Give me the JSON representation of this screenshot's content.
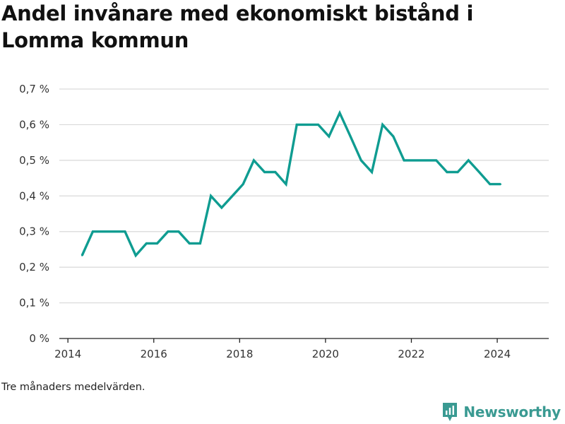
{
  "title": "Andel invånare med ekonomiskt bistånd i Lomma kommun",
  "note": "Tre månaders medelvärden.",
  "brand": {
    "name": "Newsworthy",
    "icon": "newsworthy-logo-icon",
    "color": "#3a9a92"
  },
  "colors": {
    "line": "#0f9c91",
    "grid": "#d9d9d9",
    "axis": "#222222"
  },
  "chart_data": {
    "type": "line",
    "title": "Andel invånare med ekonomiskt bistånd i Lomma kommun",
    "xlabel": "",
    "ylabel": "",
    "xlim": [
      2013.8,
      2025.2
    ],
    "ylim": [
      0,
      0.7
    ],
    "x_ticks": [
      2014,
      2016,
      2018,
      2020,
      2022,
      2024
    ],
    "x_tick_labels": [
      "2014",
      "2016",
      "2018",
      "2020",
      "2022",
      "2024"
    ],
    "y_ticks": [
      0,
      0.1,
      0.2,
      0.3,
      0.4,
      0.5,
      0.6,
      0.7
    ],
    "y_tick_labels": [
      "0 %",
      "0,1 %",
      "0,2 %",
      "0,3 %",
      "0,4 %",
      "0,5 %",
      "0,6 %",
      "0,7 %"
    ],
    "grid": true,
    "series": [
      {
        "x": [
          2014.33,
          2014.58,
          2014.83,
          2015.08,
          2015.33,
          2015.58,
          2015.83,
          2016.08,
          2016.33,
          2016.58,
          2016.83,
          2017.08,
          2017.33,
          2017.58,
          2017.83,
          2018.08,
          2018.33,
          2018.58,
          2018.83,
          2019.08,
          2019.33,
          2019.58,
          2019.83,
          2020.08,
          2020.33,
          2020.58,
          2020.83,
          2021.08,
          2021.33,
          2021.58,
          2021.83,
          2022.08,
          2022.33,
          2022.58,
          2022.83,
          2023.08,
          2023.33,
          2023.58,
          2023.83,
          2024.08
        ],
        "values": [
          0.233,
          0.3,
          0.3,
          0.3,
          0.3,
          0.233,
          0.267,
          0.267,
          0.3,
          0.3,
          0.267,
          0.267,
          0.4,
          0.367,
          0.4,
          0.433,
          0.5,
          0.467,
          0.467,
          0.433,
          0.6,
          0.6,
          0.6,
          0.567,
          0.633,
          0.567,
          0.5,
          0.467,
          0.6,
          0.567,
          0.5,
          0.5,
          0.5,
          0.5,
          0.467,
          0.467,
          0.5,
          0.467,
          0.433,
          0.433
        ]
      }
    ]
  }
}
